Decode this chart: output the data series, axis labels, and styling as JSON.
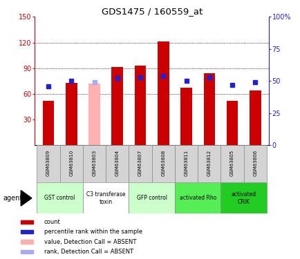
{
  "title": "GDS1475 / 160559_at",
  "samples": [
    "GSM63809",
    "GSM63810",
    "GSM63803",
    "GSM63804",
    "GSM63807",
    "GSM63808",
    "GSM63811",
    "GSM63812",
    "GSM63805",
    "GSM63806"
  ],
  "bar_values": [
    52,
    73,
    72,
    91,
    93,
    121,
    67,
    84,
    52,
    64
  ],
  "bar_colors": [
    "#cc0000",
    "#cc0000",
    "#ffb0b0",
    "#cc0000",
    "#cc0000",
    "#cc0000",
    "#cc0000",
    "#cc0000",
    "#cc0000",
    "#cc0000"
  ],
  "rank_values": [
    46,
    50,
    49,
    52,
    53,
    54,
    50,
    53,
    47,
    49
  ],
  "rank_colors": [
    "#2222cc",
    "#2222cc",
    "#aaaaee",
    "#2222cc",
    "#2222cc",
    "#2222cc",
    "#2222cc",
    "#2222cc",
    "#2222cc",
    "#2222cc"
  ],
  "ylim_left": [
    0,
    150
  ],
  "ylim_right": [
    0,
    100
  ],
  "yticks_left": [
    30,
    60,
    90,
    120,
    150
  ],
  "yticks_right": [
    0,
    25,
    50,
    75,
    100
  ],
  "ytick_labels_left": [
    "30",
    "60",
    "90",
    "120",
    "150"
  ],
  "ytick_labels_right": [
    "0",
    "25",
    "50",
    "75",
    "100%"
  ],
  "grid_values": [
    60,
    90,
    120
  ],
  "agents": [
    {
      "label": "GST control",
      "cols": [
        0,
        1
      ],
      "color": "#ccffcc"
    },
    {
      "label": "C3 transferase\ntoxin",
      "cols": [
        2,
        3
      ],
      "color": "#ffffff"
    },
    {
      "label": "GFP control",
      "cols": [
        4,
        5
      ],
      "color": "#ccffcc"
    },
    {
      "label": "activated Rho",
      "cols": [
        6,
        7
      ],
      "color": "#55ee55"
    },
    {
      "label": "activated\nCRIK",
      "cols": [
        8,
        9
      ],
      "color": "#22cc22"
    }
  ],
  "legend_items": [
    {
      "color": "#cc0000",
      "label": "count"
    },
    {
      "color": "#2222cc",
      "label": "percentile rank within the sample"
    },
    {
      "color": "#ffb0b0",
      "label": "value, Detection Call = ABSENT"
    },
    {
      "color": "#aaaaee",
      "label": "rank, Detection Call = ABSENT"
    }
  ],
  "bar_width": 0.5,
  "left_axis_color": "#cc0000",
  "right_axis_color": "#2222cc",
  "bg_color": "#ffffff"
}
